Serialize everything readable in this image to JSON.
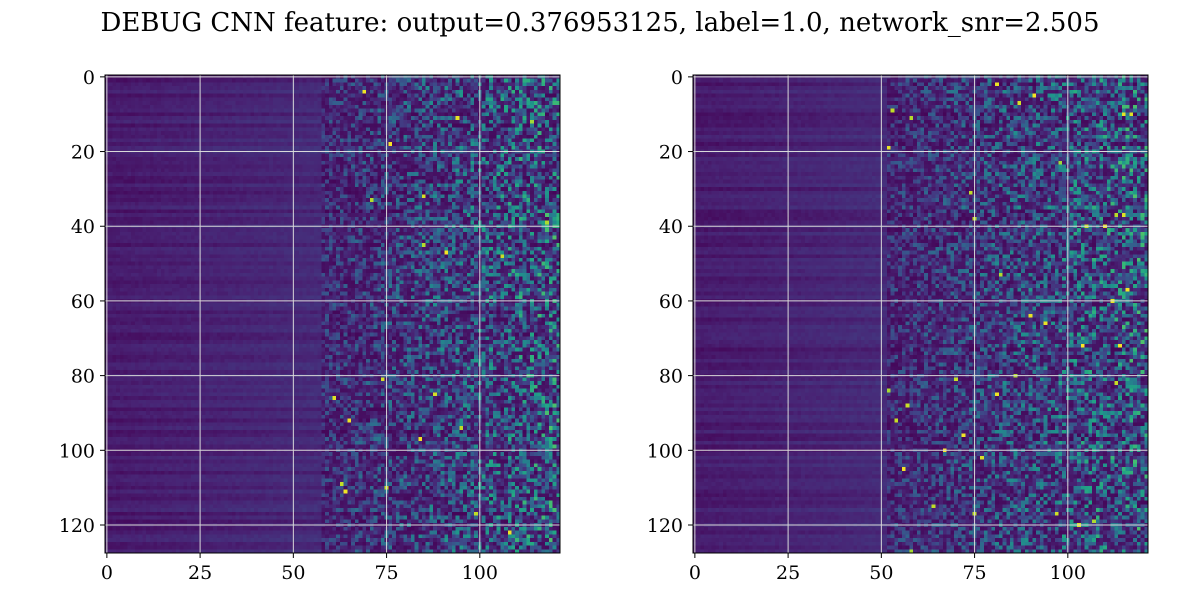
{
  "title": "DEBUG CNN feature: output=0.376953125, label=1.0, network_snr=2.505",
  "colors": {
    "viridis_dark": "#440154",
    "viridis_mid": "#21918c",
    "viridis_bright": "#fde725",
    "grid": "#d9d9d9",
    "axis": "#000000"
  },
  "chart_data": [
    {
      "type": "heatmap",
      "colormap": "viridis",
      "grid": true,
      "rows": 128,
      "cols": 122,
      "xlim": [
        -0.5,
        121.5
      ],
      "ylim": [
        127.5,
        -0.5
      ],
      "xticks": [
        0,
        25,
        50,
        75,
        100
      ],
      "yticks": [
        0,
        20,
        40,
        60,
        80,
        100,
        120
      ],
      "description_of_pattern": "low values at small x, increasingly noisy speckle for x > 60"
    },
    {
      "type": "heatmap",
      "colormap": "viridis",
      "grid": true,
      "rows": 128,
      "cols": 122,
      "xlim": [
        -0.5,
        121.5
      ],
      "ylim": [
        127.5,
        -0.5
      ],
      "xticks": [
        0,
        25,
        50,
        75,
        100
      ],
      "yticks": [
        0,
        20,
        40,
        60,
        80,
        100,
        120
      ],
      "description_of_pattern": "low values at small x, increasingly noisy speckle for x > 60"
    }
  ]
}
